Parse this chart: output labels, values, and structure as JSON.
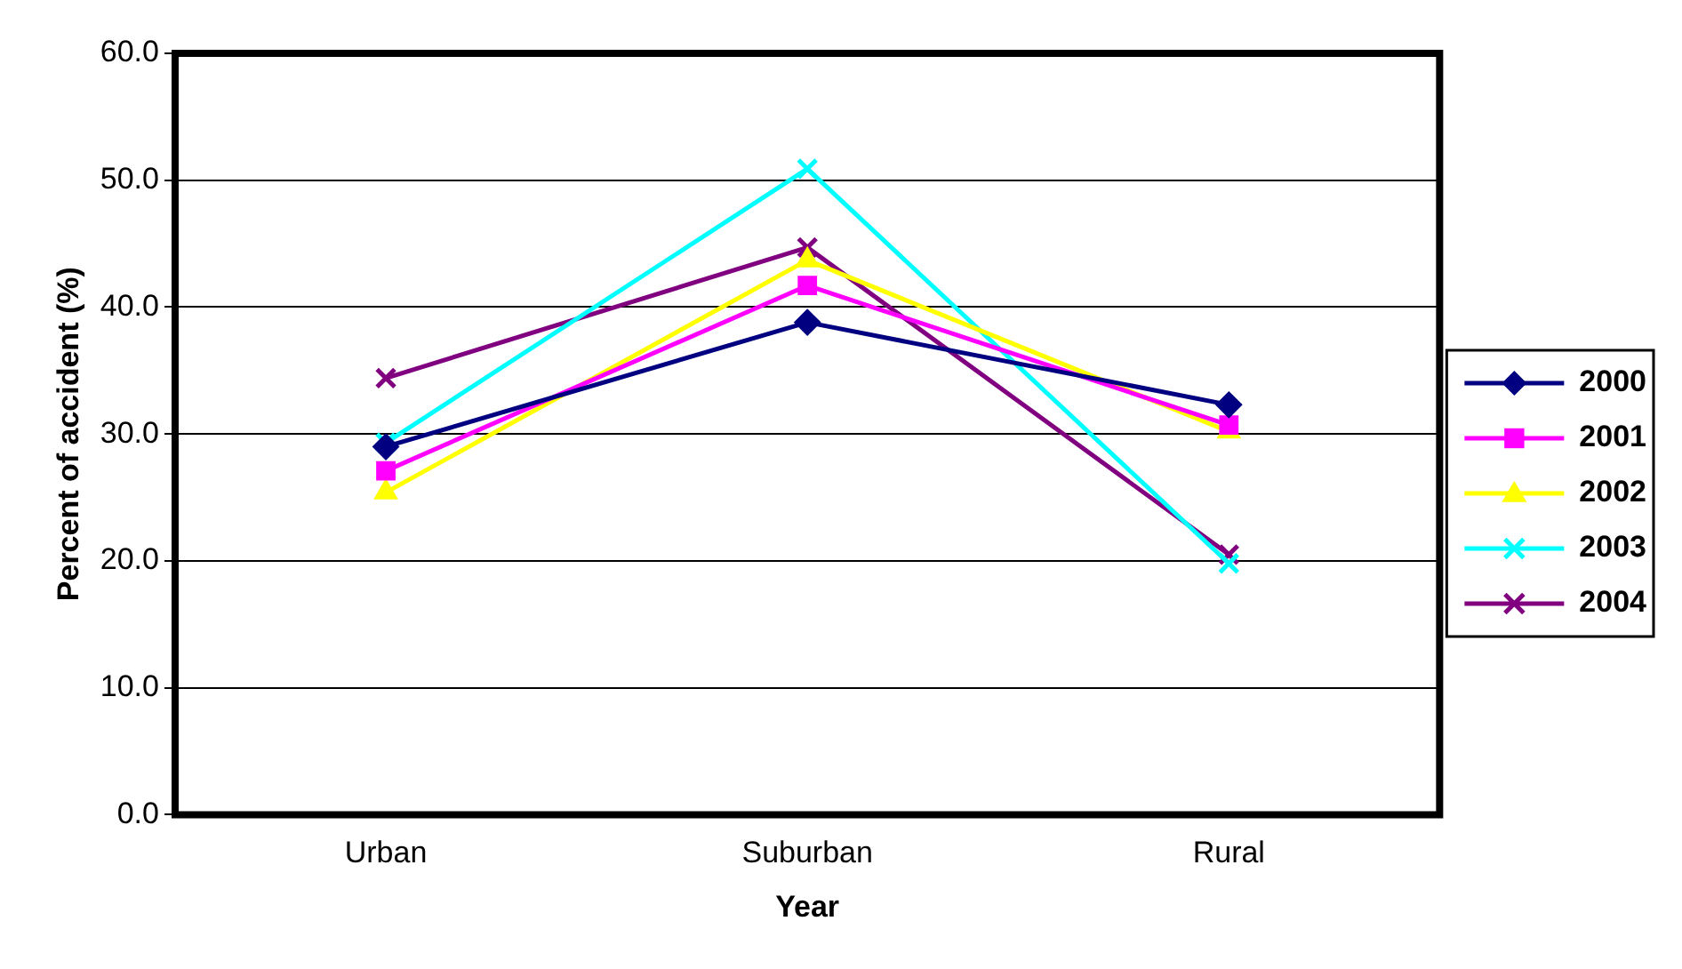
{
  "chart_data": {
    "type": "line",
    "xlabel": "Year",
    "ylabel": "Percent of accident (%)",
    "categories": [
      "Urban",
      "Suburban",
      "Rural"
    ],
    "series": [
      {
        "name": "2000",
        "color": "#000080",
        "marker": "diamond",
        "values": [
          29.0,
          38.8,
          32.3
        ]
      },
      {
        "name": "2001",
        "color": "#ff00ff",
        "marker": "square",
        "values": [
          27.1,
          41.7,
          30.7
        ]
      },
      {
        "name": "2002",
        "color": "#ffff00",
        "marker": "triangle",
        "values": [
          25.4,
          43.7,
          30.2
        ]
      },
      {
        "name": "2003",
        "color": "#00ffff",
        "marker": "cross",
        "values": [
          29.3,
          50.9,
          19.8
        ]
      },
      {
        "name": "2004",
        "color": "#800080",
        "marker": "cross",
        "values": [
          34.4,
          44.7,
          20.5
        ]
      }
    ],
    "ylim": [
      0,
      60
    ],
    "yticks": [
      {
        "value": 0,
        "label": "0.0"
      },
      {
        "value": 10,
        "label": "10.0"
      },
      {
        "value": 20,
        "label": "20.0"
      },
      {
        "value": 30,
        "label": "30.0"
      },
      {
        "value": 40,
        "label": "40.0"
      },
      {
        "value": 50,
        "label": "50.0"
      },
      {
        "value": 60,
        "label": "60.0"
      }
    ],
    "grid": "y",
    "legend": "right",
    "line_style": "solid"
  }
}
